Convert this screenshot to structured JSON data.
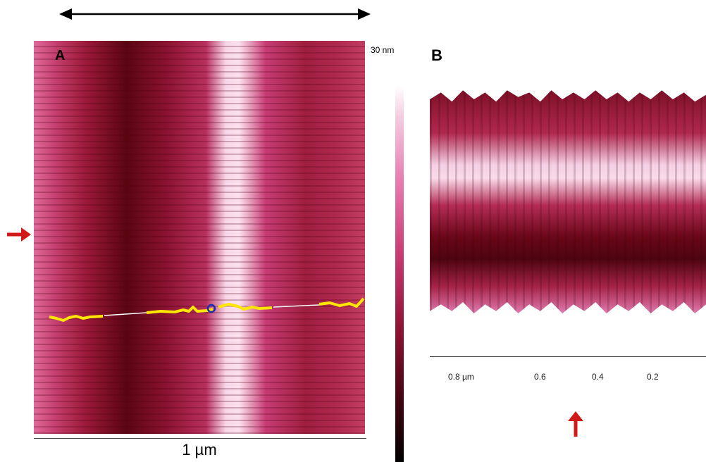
{
  "panel_a": {
    "label": "A"
  },
  "panel_b": {
    "label": "B"
  },
  "scale_bar": {
    "label": "1 µm"
  },
  "colorbar": {
    "max_label": "30 nm"
  },
  "axis_b": {
    "ticks": [
      "0.8 µm",
      "0.6",
      "0.4",
      "0.2"
    ]
  },
  "colors": {
    "profile_line": "#ffe600",
    "marker_arrow": "#d01a1a",
    "marker_circle": "#1a2db0"
  },
  "icons": {
    "top_arrow": "double-headed-arrow-icon",
    "side_marker": "right-arrow-icon",
    "bottom_marker": "up-arrow-icon"
  }
}
